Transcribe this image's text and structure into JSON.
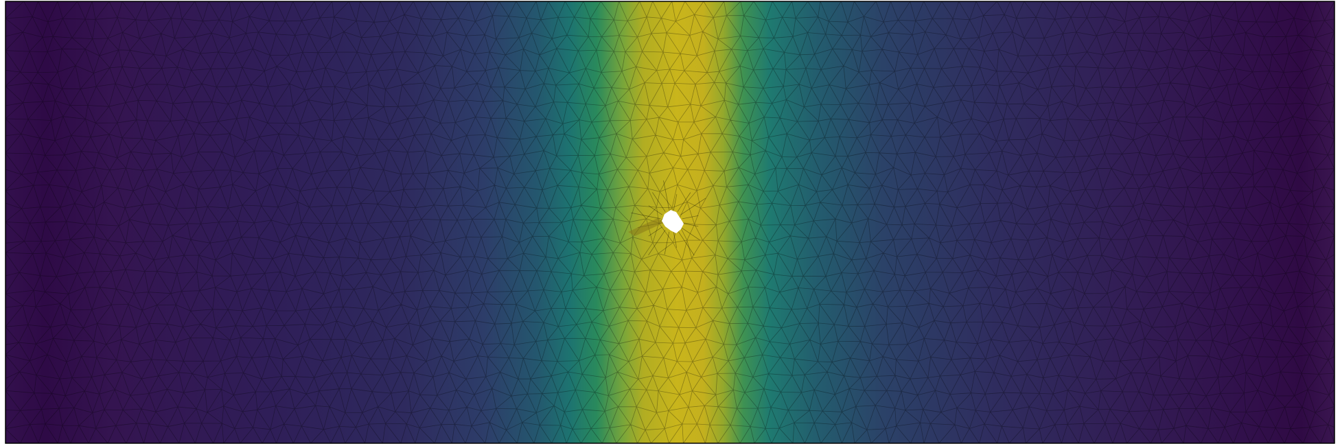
{
  "figure": {
    "kind": "finite-element mesh field plot",
    "colormap": "viridis",
    "colormap_stops": [
      "#440154",
      "#3b528b",
      "#21918c",
      "#5ec962",
      "#bddf26",
      "#c8b81c"
    ],
    "background_color": "#ffffff",
    "frame_color": "#000000",
    "mesh_line_color": "#000000",
    "hole_color": "#ffffff",
    "band_peak_color": "#c7b41c",
    "edge_dark_color": "#2f0a44"
  }
}
